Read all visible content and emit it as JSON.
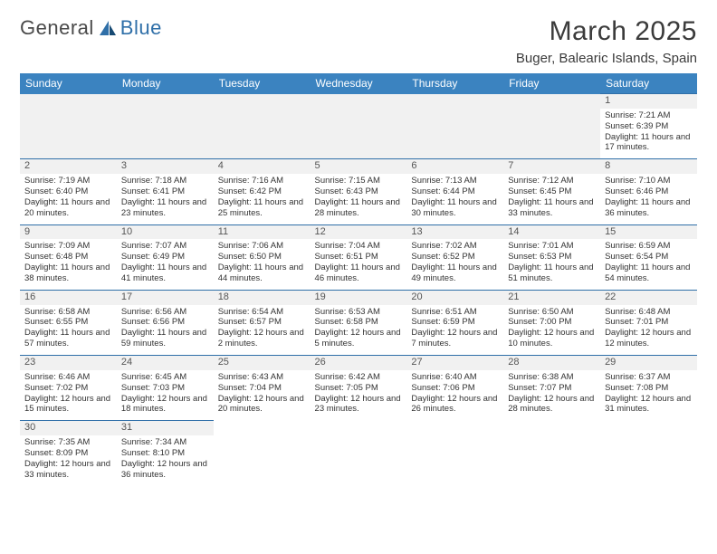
{
  "logo": {
    "text1": "General",
    "text2": "Blue"
  },
  "title": "March 2025",
  "location": "Buger, Balearic Islands, Spain",
  "weekdays": [
    "Sunday",
    "Monday",
    "Tuesday",
    "Wednesday",
    "Thursday",
    "Friday",
    "Saturday"
  ],
  "colors": {
    "header_bg": "#3b83c0",
    "header_text": "#ffffff",
    "border": "#2f6fa8",
    "blank_bg": "#f1f1f1",
    "text": "#333333",
    "logo_gray": "#4a4a4a",
    "logo_blue": "#2f6fa8"
  },
  "weeks": [
    [
      null,
      null,
      null,
      null,
      null,
      null,
      {
        "d": "1",
        "r": "7:21 AM",
        "s": "6:39 PM",
        "l": "11 hours and 17 minutes."
      }
    ],
    [
      {
        "d": "2",
        "r": "7:19 AM",
        "s": "6:40 PM",
        "l": "11 hours and 20 minutes."
      },
      {
        "d": "3",
        "r": "7:18 AM",
        "s": "6:41 PM",
        "l": "11 hours and 23 minutes."
      },
      {
        "d": "4",
        "r": "7:16 AM",
        "s": "6:42 PM",
        "l": "11 hours and 25 minutes."
      },
      {
        "d": "5",
        "r": "7:15 AM",
        "s": "6:43 PM",
        "l": "11 hours and 28 minutes."
      },
      {
        "d": "6",
        "r": "7:13 AM",
        "s": "6:44 PM",
        "l": "11 hours and 30 minutes."
      },
      {
        "d": "7",
        "r": "7:12 AM",
        "s": "6:45 PM",
        "l": "11 hours and 33 minutes."
      },
      {
        "d": "8",
        "r": "7:10 AM",
        "s": "6:46 PM",
        "l": "11 hours and 36 minutes."
      }
    ],
    [
      {
        "d": "9",
        "r": "7:09 AM",
        "s": "6:48 PM",
        "l": "11 hours and 38 minutes."
      },
      {
        "d": "10",
        "r": "7:07 AM",
        "s": "6:49 PM",
        "l": "11 hours and 41 minutes."
      },
      {
        "d": "11",
        "r": "7:06 AM",
        "s": "6:50 PM",
        "l": "11 hours and 44 minutes."
      },
      {
        "d": "12",
        "r": "7:04 AM",
        "s": "6:51 PM",
        "l": "11 hours and 46 minutes."
      },
      {
        "d": "13",
        "r": "7:02 AM",
        "s": "6:52 PM",
        "l": "11 hours and 49 minutes."
      },
      {
        "d": "14",
        "r": "7:01 AM",
        "s": "6:53 PM",
        "l": "11 hours and 51 minutes."
      },
      {
        "d": "15",
        "r": "6:59 AM",
        "s": "6:54 PM",
        "l": "11 hours and 54 minutes."
      }
    ],
    [
      {
        "d": "16",
        "r": "6:58 AM",
        "s": "6:55 PM",
        "l": "11 hours and 57 minutes."
      },
      {
        "d": "17",
        "r": "6:56 AM",
        "s": "6:56 PM",
        "l": "11 hours and 59 minutes."
      },
      {
        "d": "18",
        "r": "6:54 AM",
        "s": "6:57 PM",
        "l": "12 hours and 2 minutes."
      },
      {
        "d": "19",
        "r": "6:53 AM",
        "s": "6:58 PM",
        "l": "12 hours and 5 minutes."
      },
      {
        "d": "20",
        "r": "6:51 AM",
        "s": "6:59 PM",
        "l": "12 hours and 7 minutes."
      },
      {
        "d": "21",
        "r": "6:50 AM",
        "s": "7:00 PM",
        "l": "12 hours and 10 minutes."
      },
      {
        "d": "22",
        "r": "6:48 AM",
        "s": "7:01 PM",
        "l": "12 hours and 12 minutes."
      }
    ],
    [
      {
        "d": "23",
        "r": "6:46 AM",
        "s": "7:02 PM",
        "l": "12 hours and 15 minutes."
      },
      {
        "d": "24",
        "r": "6:45 AM",
        "s": "7:03 PM",
        "l": "12 hours and 18 minutes."
      },
      {
        "d": "25",
        "r": "6:43 AM",
        "s": "7:04 PM",
        "l": "12 hours and 20 minutes."
      },
      {
        "d": "26",
        "r": "6:42 AM",
        "s": "7:05 PM",
        "l": "12 hours and 23 minutes."
      },
      {
        "d": "27",
        "r": "6:40 AM",
        "s": "7:06 PM",
        "l": "12 hours and 26 minutes."
      },
      {
        "d": "28",
        "r": "6:38 AM",
        "s": "7:07 PM",
        "l": "12 hours and 28 minutes."
      },
      {
        "d": "29",
        "r": "6:37 AM",
        "s": "7:08 PM",
        "l": "12 hours and 31 minutes."
      }
    ],
    [
      {
        "d": "30",
        "r": "7:35 AM",
        "s": "8:09 PM",
        "l": "12 hours and 33 minutes."
      },
      {
        "d": "31",
        "r": "7:34 AM",
        "s": "8:10 PM",
        "l": "12 hours and 36 minutes."
      },
      null,
      null,
      null,
      null,
      null
    ]
  ],
  "labels": {
    "sunrise": "Sunrise:",
    "sunset": "Sunset:",
    "daylight": "Daylight:"
  }
}
